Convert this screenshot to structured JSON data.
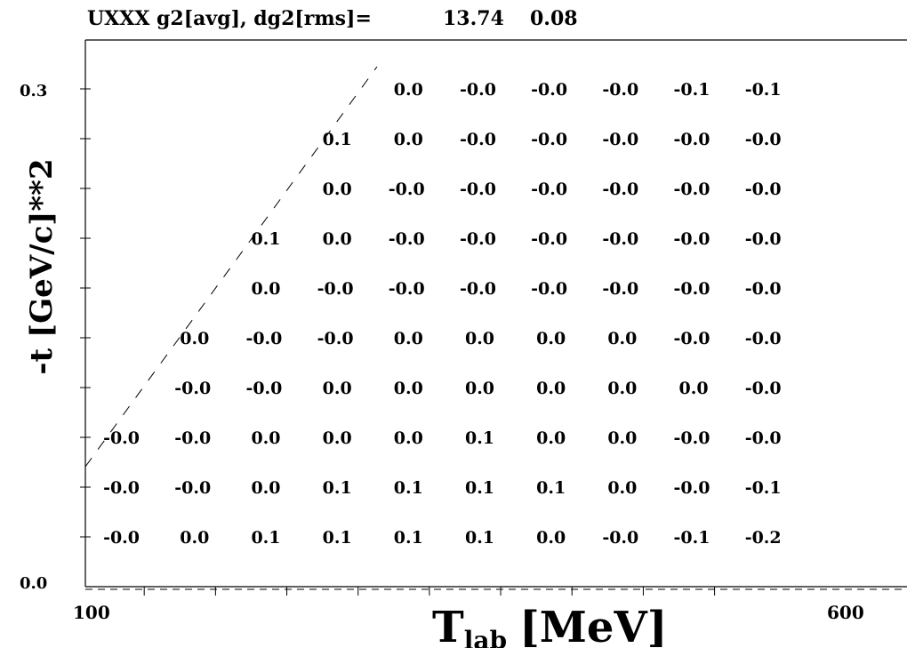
{
  "chart_data": {
    "type": "table",
    "title": "UXXX  g2[avg], dg2[rms]=",
    "avg": "13.74",
    "rms": "0.08",
    "xlabel": {
      "main": "T",
      "sub": "lab",
      "unit": "[MeV]"
    },
    "ylabel": "-t  [GeV/c]**2",
    "x_tick_labels": [
      "100",
      "600"
    ],
    "y_tick_labels": [
      "0.3",
      "0.0"
    ],
    "xlim": [
      100,
      600
    ],
    "ylim": [
      0.0,
      0.3
    ],
    "x_centers": [
      125,
      175,
      225,
      275,
      325,
      375,
      425,
      475,
      525,
      575
    ],
    "y_centers": [
      0.3,
      0.27,
      0.24,
      0.21,
      0.18,
      0.15,
      0.12,
      0.09,
      0.06,
      0.03
    ],
    "cells": [
      [
        "",
        "",
        "",
        "",
        "0.0",
        "-0.0",
        "-0.0",
        "-0.0",
        "-0.1",
        "-0.1"
      ],
      [
        "",
        "",
        "",
        "0.1",
        "0.0",
        "-0.0",
        "-0.0",
        "-0.0",
        "-0.0",
        "-0.0"
      ],
      [
        "",
        "",
        "",
        "0.0",
        "-0.0",
        "-0.0",
        "-0.0",
        "-0.0",
        "-0.0",
        "-0.0"
      ],
      [
        "",
        "",
        "0.1",
        "0.0",
        "-0.0",
        "-0.0",
        "-0.0",
        "-0.0",
        "-0.0",
        "-0.0"
      ],
      [
        "",
        "",
        "0.0",
        "-0.0",
        "-0.0",
        "-0.0",
        "-0.0",
        "-0.0",
        "-0.0",
        "-0.0"
      ],
      [
        "",
        "0.0",
        "-0.0",
        "-0.0",
        "0.0",
        "0.0",
        "0.0",
        "0.0",
        "-0.0",
        "-0.0"
      ],
      [
        "",
        "-0.0",
        "-0.0",
        "0.0",
        "0.0",
        "0.0",
        "0.0",
        "0.0",
        "0.0",
        "-0.0"
      ],
      [
        "-0.0",
        "-0.0",
        "0.0",
        "0.0",
        "0.0",
        "0.1",
        "0.0",
        "0.0",
        "-0.0",
        "-0.0"
      ],
      [
        "-0.0",
        "-0.0",
        "0.0",
        "0.1",
        "0.1",
        "0.1",
        "0.1",
        "0.0",
        "-0.0",
        "-0.1"
      ],
      [
        "-0.0",
        "0.0",
        "0.1",
        "0.1",
        "0.1",
        "0.1",
        "0.0",
        "-0.0",
        "-0.1",
        "-0.2"
      ]
    ],
    "boundary_line": {
      "style": "dashed"
    },
    "grid": false
  }
}
